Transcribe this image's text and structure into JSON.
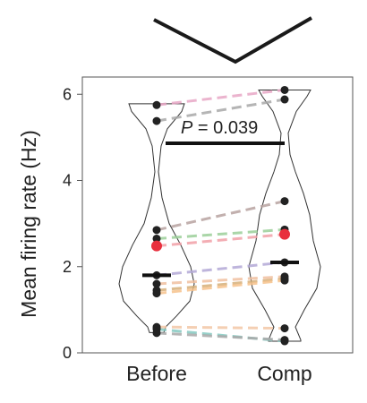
{
  "chart_data": {
    "type": "violin",
    "categories": [
      "Before",
      "Comp"
    ],
    "ylabel": "Mean firing rate (Hz)",
    "ylim": [
      0,
      6.4
    ],
    "yticks": [
      0,
      2,
      4,
      6
    ],
    "annotation": {
      "label_p": "P",
      "label_rest": " = 0.039"
    },
    "pairs": [
      {
        "before": 5.75,
        "comp": 6.1,
        "color": "#e8a7c6"
      },
      {
        "before": 5.38,
        "comp": 5.88,
        "color": "#a9a9a9"
      },
      {
        "before": 2.85,
        "comp": 3.52,
        "color": "#b8a3a0"
      },
      {
        "before": 2.65,
        "comp": 2.86,
        "color": "#9cd09a"
      },
      {
        "before": 2.48,
        "comp": 2.75,
        "color": "#f2a0a8"
      },
      {
        "before": 1.8,
        "comp": 2.1,
        "color": "#b3a9d6"
      },
      {
        "before": 1.6,
        "comp": 1.77,
        "color": "#f0c0a0"
      },
      {
        "before": 1.45,
        "comp": 1.72,
        "color": "#d7b07a"
      },
      {
        "before": 1.38,
        "comp": 1.68,
        "color": "#f6c28c"
      },
      {
        "before": 0.6,
        "comp": 0.57,
        "color": "#f3c7a6"
      },
      {
        "before": 0.55,
        "comp": 0.27,
        "color": "#86c9c1"
      },
      {
        "before": 0.46,
        "comp": 0.3,
        "color": "#a9a9a9"
      }
    ],
    "highlight_points": {
      "before": 2.48,
      "comp": 2.75,
      "color": "#e8303e"
    },
    "medians": {
      "before": 1.8,
      "comp": 2.1
    }
  }
}
